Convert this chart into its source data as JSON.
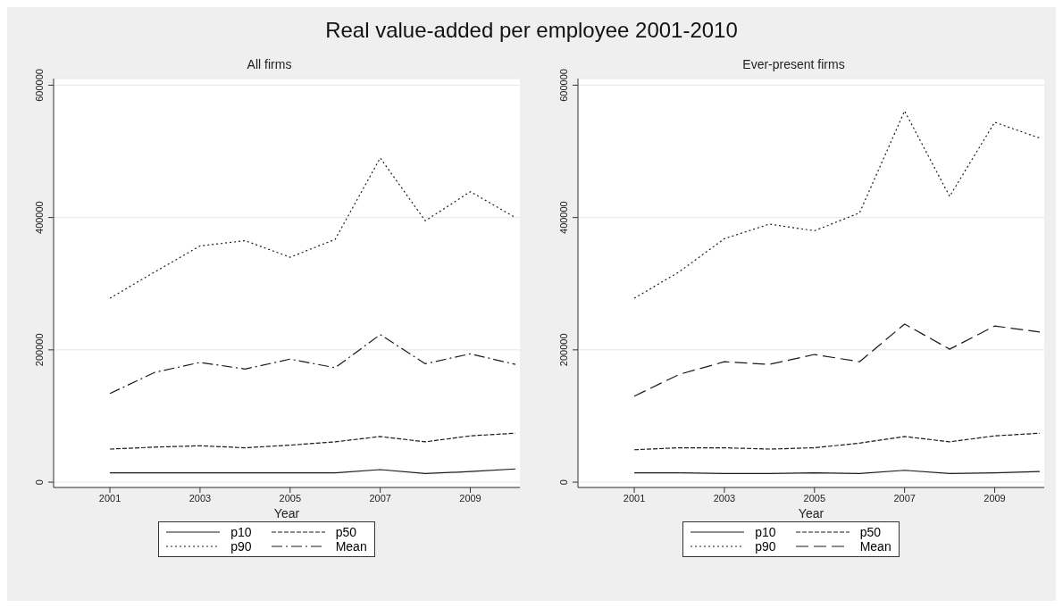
{
  "chart_data": [
    {
      "type": "line",
      "title": "Real value-added per employee 2001-2010",
      "subtitle": "All firms",
      "xlabel": "Year",
      "x": [
        2001,
        2002,
        2003,
        2004,
        2005,
        2006,
        2007,
        2008,
        2009,
        2010
      ],
      "xlim": [
        1999.75,
        2010.1
      ],
      "xticks": [
        2001,
        2003,
        2005,
        2007,
        2009
      ],
      "ylim": [
        -8000,
        610000
      ],
      "yticks": [
        0,
        200000,
        400000,
        600000
      ],
      "grid": "y",
      "legend": "bottom",
      "marker": "none",
      "series": [
        {
          "name": "p10",
          "color": "#1a1a1a",
          "line_style": "solid",
          "values": [
            14000,
            14000,
            14000,
            14000,
            14000,
            14000,
            19000,
            13000,
            16000,
            20000
          ]
        },
        {
          "name": "p50",
          "color": "#1a1a1a",
          "line_style": "dashed",
          "values": [
            50000,
            53000,
            55000,
            52000,
            56000,
            61000,
            69000,
            61000,
            70000,
            74000
          ]
        },
        {
          "name": "p90",
          "color": "#1a1a1a",
          "line_style": "dotted",
          "values": [
            278000,
            318000,
            357000,
            365000,
            340000,
            367000,
            490000,
            395000,
            439000,
            400000
          ]
        },
        {
          "name": "Mean",
          "color": "#1a1a1a",
          "line_style": "dashdot",
          "values": [
            134000,
            166000,
            181000,
            171000,
            186000,
            173000,
            223000,
            179000,
            194000,
            178000
          ]
        }
      ]
    },
    {
      "type": "line",
      "subtitle": "Ever-present firms",
      "xlabel": "Year",
      "x": [
        2001,
        2002,
        2003,
        2004,
        2005,
        2006,
        2007,
        2008,
        2009,
        2010
      ],
      "xlim": [
        1999.75,
        2010.1
      ],
      "xticks": [
        2001,
        2003,
        2005,
        2007,
        2009
      ],
      "ylim": [
        -8000,
        610000
      ],
      "yticks": [
        0,
        200000,
        400000,
        600000
      ],
      "grid": "y",
      "legend": "bottom",
      "marker": "none",
      "series": [
        {
          "name": "p10",
          "color": "#1a1a1a",
          "line_style": "solid",
          "values": [
            14000,
            14000,
            13000,
            13000,
            14000,
            13000,
            18000,
            13000,
            14000,
            16000
          ]
        },
        {
          "name": "p50",
          "color": "#1a1a1a",
          "line_style": "dashed",
          "values": [
            49000,
            52000,
            52000,
            50000,
            52000,
            59000,
            69000,
            61000,
            70000,
            74000
          ]
        },
        {
          "name": "p90",
          "color": "#1a1a1a",
          "line_style": "dotted",
          "values": [
            278000,
            318000,
            368000,
            390000,
            380000,
            407000,
            561000,
            432000,
            544000,
            520000
          ]
        },
        {
          "name": "Mean",
          "color": "#1a1a1a",
          "line_style": "longdash",
          "values": [
            130000,
            163000,
            182000,
            178000,
            193000,
            182000,
            239000,
            201000,
            236000,
            227000
          ]
        }
      ]
    }
  ]
}
